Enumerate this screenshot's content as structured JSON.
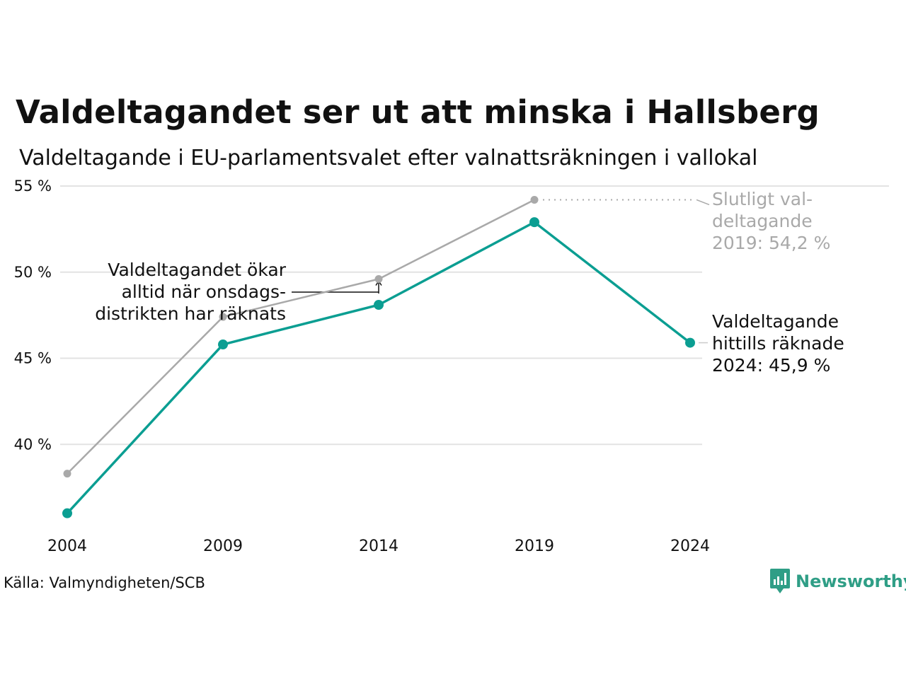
{
  "chart_data": {
    "type": "line",
    "title": "Valdeltagandet ser ut att minska i Hallsberg",
    "subtitle": "Valdeltagande i EU-parlamentsvalet efter valnattsräkningen i vallokal",
    "x": [
      "2004",
      "2009",
      "2014",
      "2019",
      "2024"
    ],
    "ylim": [
      35,
      55
    ],
    "yticks": [
      {
        "value": 40,
        "label": "40 %"
      },
      {
        "value": 45,
        "label": "45 %"
      },
      {
        "value": 50,
        "label": "50 %"
      },
      {
        "value": 55,
        "label": "55 %"
      }
    ],
    "grid": true,
    "series": [
      {
        "key": "final",
        "color": "#a9a9a9",
        "values": [
          38.3,
          47.4,
          49.6,
          54.2,
          null
        ]
      },
      {
        "key": "election_night",
        "color": "#0b9e92",
        "values": [
          36.0,
          45.8,
          48.1,
          52.9,
          45.9
        ]
      }
    ],
    "annotations": {
      "final_2019": [
        "Slutligt val-",
        "deltagande",
        "2019: 54,2 %"
      ],
      "current_2024": [
        "Valdeltagande",
        "hittills räknade",
        "2024: 45,9 %"
      ],
      "wednesday": [
        "Valdeltagandet ökar",
        "alltid när onsdags-",
        "distrikten har räknats"
      ]
    }
  },
  "source": "Källa: Valmyndigheten/SCB",
  "brand": {
    "name": "Newsworthy",
    "icon": "bar-chart-speech-bubble-icon",
    "color": "#2f9e86"
  }
}
